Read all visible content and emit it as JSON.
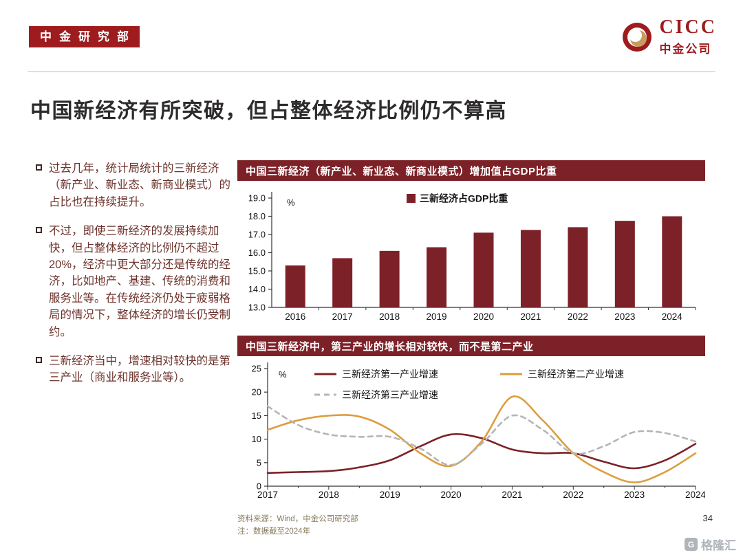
{
  "page": {
    "badge": "中金研究部",
    "logo": {
      "cicc": "CICC",
      "company": "中金公司"
    },
    "title": "中国新经济有所突破，但占整体经济比例仍不算高",
    "bullets": [
      "过去几年，统计局统计的三新经济（新产业、新业态、新商业模式）的占比也在持续提升。",
      "不过，即使三新经济的发展持续加快，但占整体经济的比例仍不超过20%，经济中更大部分还是传统的经济，比如地产、基建、传统的消费和服务业等。在传统经济仍处于疲弱格局的情况下，整体经济的增长仍受制约。",
      "三新经济当中，增速相对较快的是第三产业（商业和服务业等）。"
    ],
    "footer": {
      "source": "资料来源：Wind，中金公司研究部",
      "note": "注：数据截至2024年",
      "page_number": "34",
      "watermark": "格隆汇"
    }
  },
  "colors": {
    "brand_red": "#9e1b1e",
    "chart_maroon": "#7d2128",
    "series_red": "#7d2128",
    "series_orange": "#dd9d3e",
    "series_gray": "#b5b5b5"
  },
  "chart_data": [
    {
      "type": "bar",
      "title": "中国三新经济（新产业、新业态、新商业模式）增加值占GDP比重",
      "legend": [
        "三新经济占GDP比重"
      ],
      "categories": [
        "2016",
        "2017",
        "2018",
        "2019",
        "2020",
        "2021",
        "2022",
        "2023",
        "2024"
      ],
      "values": [
        15.3,
        15.7,
        16.1,
        16.3,
        17.1,
        17.25,
        17.4,
        17.75,
        18.0
      ],
      "ylabel": "%",
      "ylim": [
        13.0,
        19.0
      ],
      "ytick_step": 1.0,
      "grid": false,
      "legend_position": "top-center",
      "bar_color": "#7d2128"
    },
    {
      "type": "line",
      "title": "中国三新经济中，第三产业的增长相对较快，而不是第二产业",
      "ylabel": "%",
      "ylim": [
        0,
        25
      ],
      "ytick_step": 5,
      "grid": false,
      "legend_position": "top-inside",
      "x": [
        2017,
        2017.5,
        2018,
        2018.5,
        2019,
        2019.5,
        2020,
        2020.5,
        2021,
        2021.5,
        2022,
        2022.5,
        2023,
        2023.5,
        2024
      ],
      "xticks": [
        2017,
        2018,
        2019,
        2020,
        2021,
        2022,
        2023,
        2024
      ],
      "series": [
        {
          "name": "三新经济第一产业增速",
          "color": "#7d2128",
          "dash": null,
          "values": [
            2.8,
            3.0,
            3.2,
            4.0,
            5.5,
            8.5,
            11.0,
            10.2,
            7.8,
            7.0,
            7.0,
            5.2,
            3.8,
            5.5,
            9.0
          ]
        },
        {
          "name": "三新经济第二产业增速",
          "color": "#dd9d3e",
          "dash": null,
          "values": [
            12.0,
            14.0,
            15.0,
            14.8,
            12.0,
            7.0,
            4.3,
            9.5,
            19.0,
            14.0,
            7.0,
            3.0,
            0.8,
            3.0,
            7.0
          ]
        },
        {
          "name": "三新经济第三产业增速",
          "color": "#b5b5b5",
          "dash": "7,6",
          "values": [
            17.0,
            13.0,
            11.0,
            10.5,
            10.5,
            8.0,
            4.5,
            9.0,
            15.0,
            12.0,
            7.0,
            8.5,
            11.5,
            11.3,
            9.5
          ]
        }
      ]
    }
  ]
}
